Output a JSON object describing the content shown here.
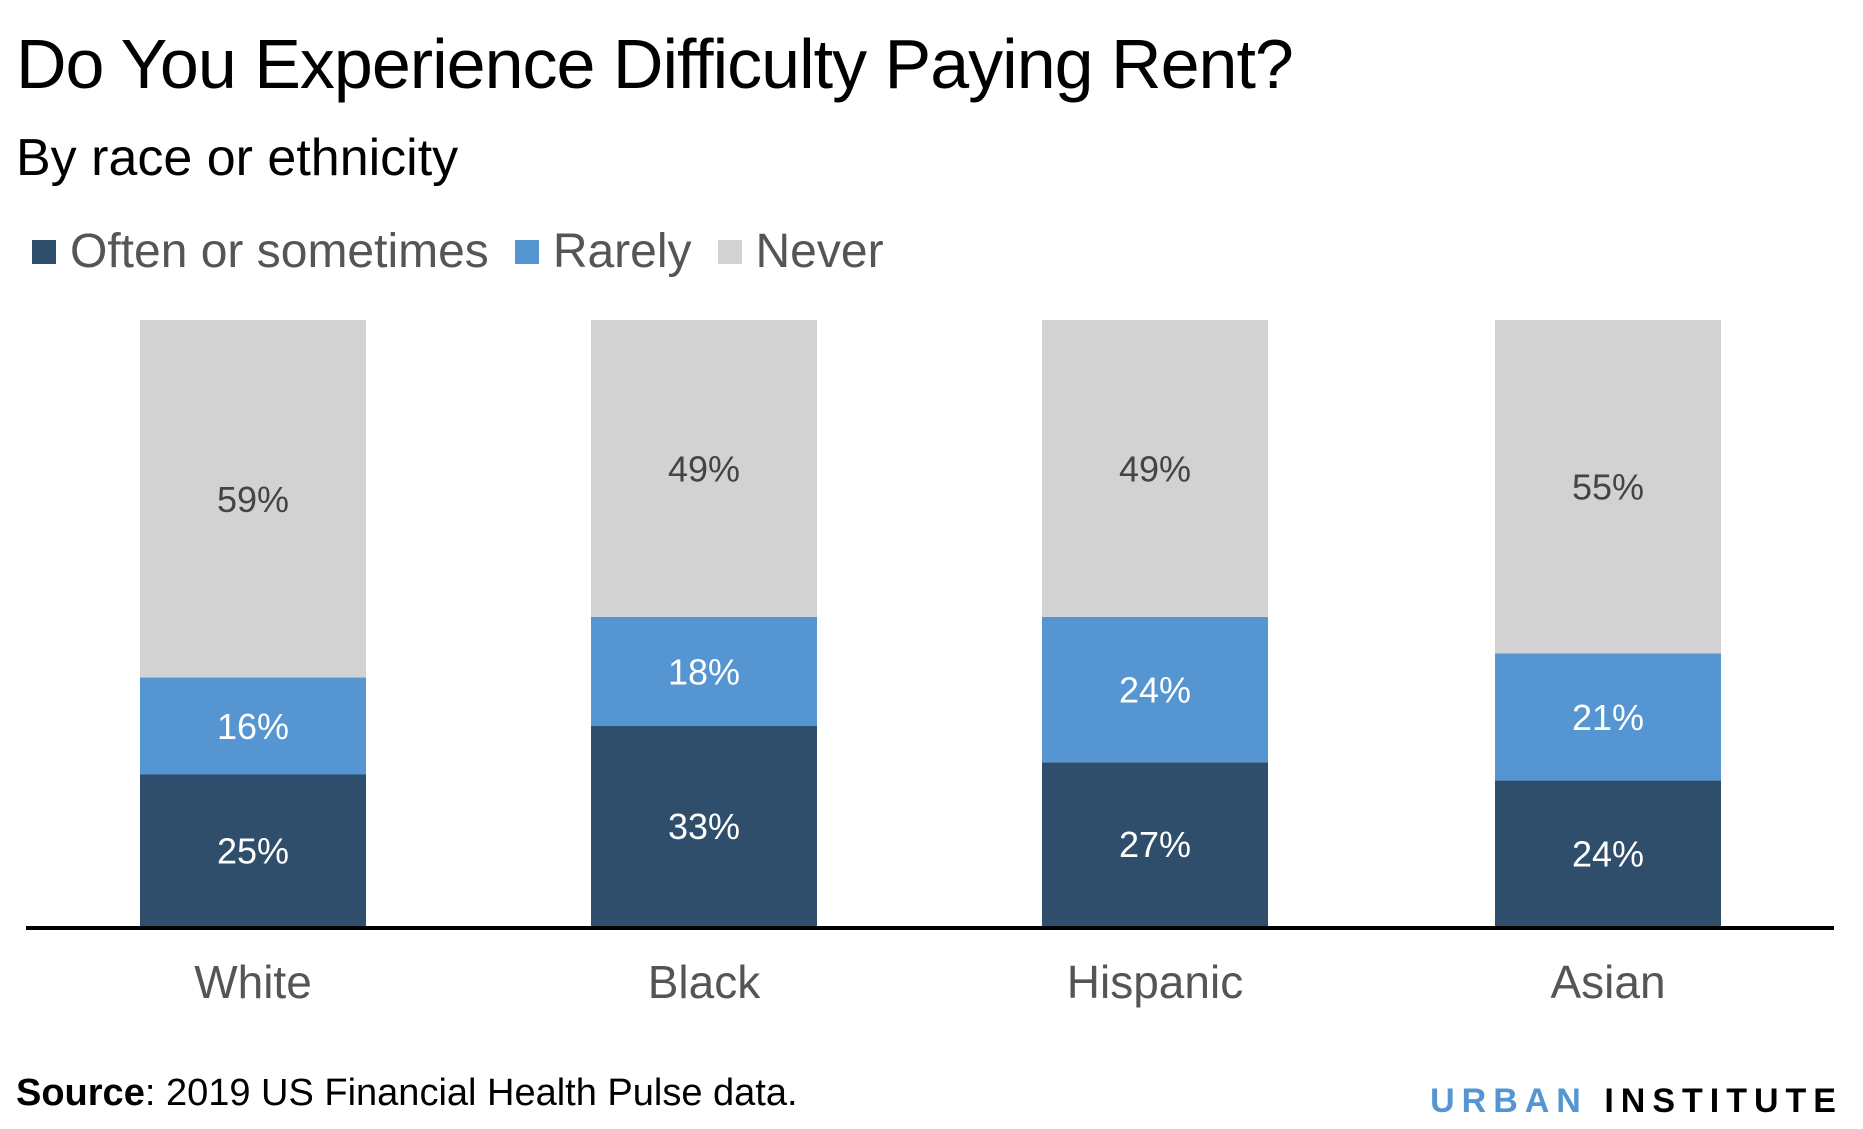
{
  "chart_data": {
    "type": "bar",
    "stacked": true,
    "title": "Do You Experience Difficulty Paying Rent?",
    "subtitle": "By race or ethnicity",
    "categories": [
      "White",
      "Black",
      "Hispanic",
      "Asian"
    ],
    "series": [
      {
        "name": "Often or sometimes",
        "color": "#2e4e6b",
        "label_color": "#ffffff",
        "values": [
          25,
          33,
          27,
          24
        ]
      },
      {
        "name": "Rarely",
        "color": "#5595d1",
        "label_color": "#ffffff",
        "values": [
          16,
          18,
          24,
          21
        ]
      },
      {
        "name": "Never",
        "color": "#d2d2d2",
        "label_color": "#444444",
        "values": [
          59,
          49,
          49,
          55
        ]
      }
    ],
    "value_suffix": "%",
    "ylim": [
      0,
      100
    ],
    "grid": false,
    "legend_position": "top-left",
    "xlabel": "",
    "ylabel": ""
  },
  "source": {
    "label": "Source",
    "text": ": 2019 US Financial Health Pulse data."
  },
  "logo": {
    "part1": "URBAN",
    "part2": "INSTITUTE"
  }
}
